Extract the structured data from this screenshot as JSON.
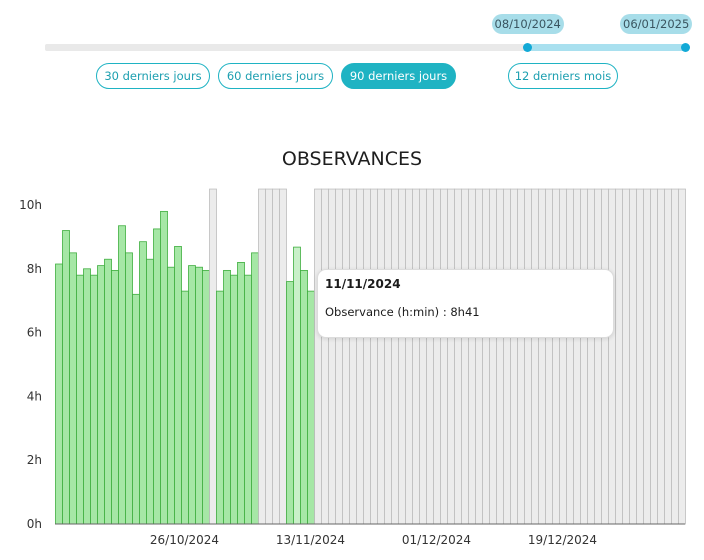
{
  "range_slider": {
    "start_label": "08/10/2024",
    "end_label": "06/01/2025",
    "start_fraction": 0.754,
    "end_fraction": 1.0
  },
  "period_buttons": [
    {
      "label": "30 derniers jours",
      "active": false
    },
    {
      "label": "60 derniers jours",
      "active": false
    },
    {
      "label": "90 derniers jours",
      "active": true
    },
    {
      "label": "12 derniers mois",
      "active": false
    }
  ],
  "tooltip": {
    "date": "11/11/2024",
    "text": "Observance (h:min) : 8h41"
  },
  "colors": {
    "accent": "#1fb3c3",
    "bar_fill": "#a6e7a6",
    "bar_edge": "#3fae3f",
    "highlight_fill": "#c9f0c9",
    "nodata_fill": "#ececec",
    "nodata_edge": "#bdbdbd"
  },
  "chart_data": {
    "type": "bar",
    "title": "OBSERVANCES",
    "xlabel": "",
    "ylabel": "",
    "ylim": [
      0,
      10.5
    ],
    "y_ticks": [
      "0h",
      "2h",
      "4h",
      "6h",
      "8h",
      "10h"
    ],
    "y_tick_values": [
      0,
      2,
      4,
      6,
      8,
      10
    ],
    "x_tick_labels": [
      "26/10/2024",
      "13/11/2024",
      "01/12/2024",
      "19/12/2024"
    ],
    "x_tick_indices": [
      18,
      36,
      54,
      72
    ],
    "grid": false,
    "highlighted_index": 34,
    "values": [
      8.15,
      9.2,
      8.5,
      7.8,
      8.0,
      7.8,
      8.1,
      8.3,
      7.95,
      9.35,
      8.5,
      7.2,
      8.85,
      8.3,
      9.25,
      9.8,
      8.05,
      8.7,
      7.3,
      8.1,
      8.05,
      7.95,
      null,
      7.3,
      7.95,
      7.8,
      8.2,
      7.8,
      8.5,
      null,
      null,
      null,
      null,
      7.6,
      8.68,
      7.95,
      7.3,
      null,
      null,
      null,
      null,
      null,
      null,
      null,
      null,
      null,
      null,
      null,
      null,
      null,
      null,
      null,
      null,
      null,
      null,
      null,
      null,
      null,
      null,
      null,
      null,
      null,
      null,
      null,
      null,
      null,
      null,
      null,
      null,
      null,
      null,
      null,
      null,
      null,
      null,
      null,
      null,
      null,
      null,
      null,
      null,
      null,
      null,
      null,
      null,
      null,
      null,
      null,
      null,
      null
    ]
  }
}
